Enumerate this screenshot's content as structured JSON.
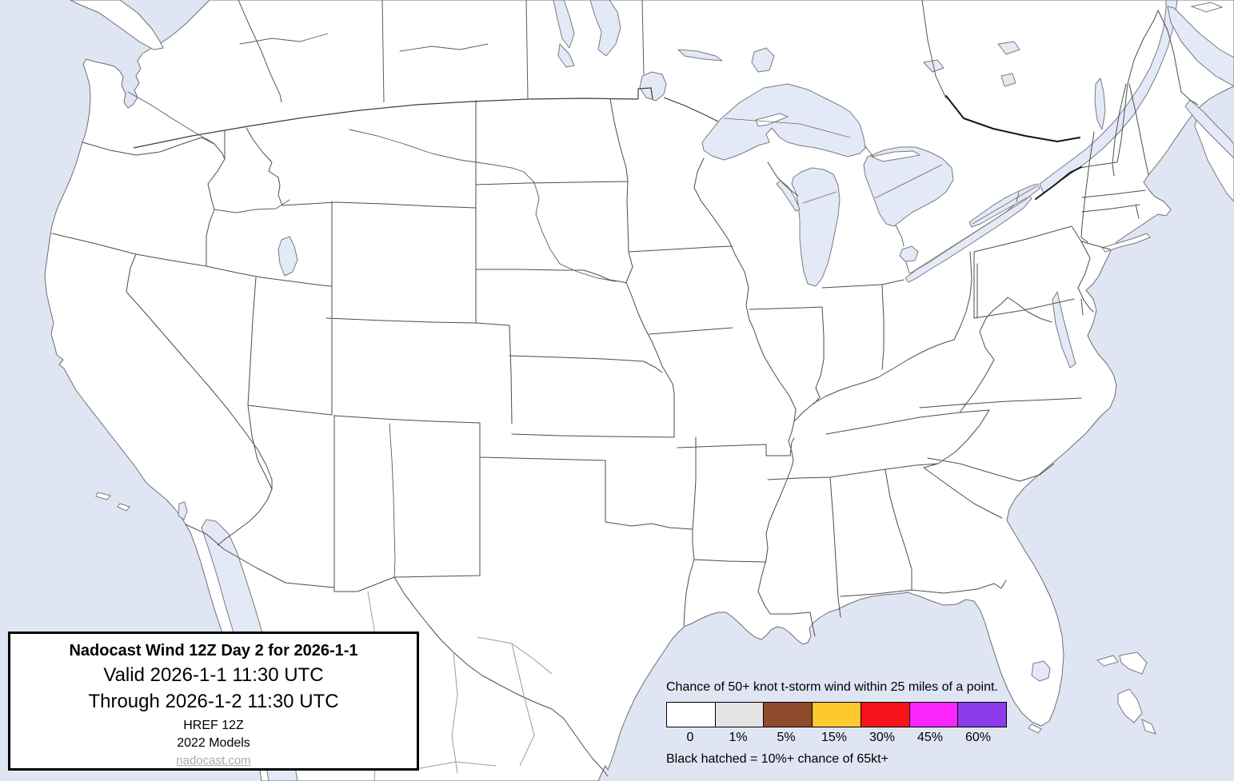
{
  "title_box": {
    "line1": "Nadocast Wind 12Z Day 2 for 2026-1-1",
    "line2": "Valid 2026-1-1 11:30 UTC",
    "line3": "Through 2026-1-2 11:30 UTC",
    "line4": "HREF 12Z",
    "line5": "2022 Models",
    "link": "nadocast.com"
  },
  "legend": {
    "title": "Chance of 50+ knot t-storm wind within 25 miles of a point.",
    "note": "Black hatched = 10%+ chance of 65kt+",
    "bins": [
      {
        "label": "0",
        "color": "#ffffff"
      },
      {
        "label": "1%",
        "color": "#e3e3e3"
      },
      {
        "label": "5%",
        "color": "#8f4a2c"
      },
      {
        "label": "15%",
        "color": "#fec82f"
      },
      {
        "label": "30%",
        "color": "#f8131c"
      },
      {
        "label": "45%",
        "color": "#fb24fa"
      },
      {
        "label": "60%",
        "color": "#8c3be9"
      }
    ]
  },
  "map": {
    "colors": {
      "water": "#dfe5f3",
      "lake_water": "#e3e9f7",
      "land": "#ffffff",
      "state_border": "#4d4d4d",
      "mexico_border": "#9b9b9b"
    }
  }
}
